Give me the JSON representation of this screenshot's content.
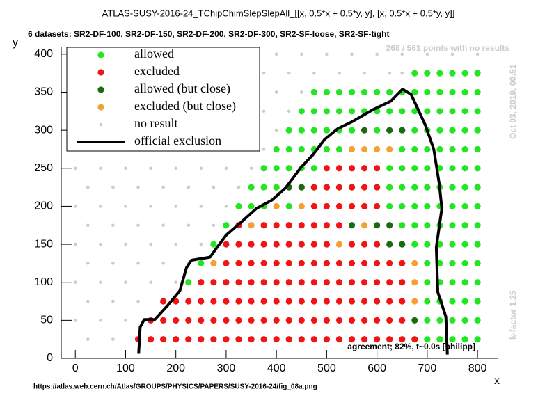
{
  "chart_data": {
    "type": "scatter",
    "title": "ATLAS-SUSY-2016-24_TChipChimSlepSlepAll_[[x, 0.5*x + 0.5*y, y], [x, 0.5*x + 0.5*y, y]]",
    "subtitle": "6 datasets: SR2-DF-100, SR2-DF-150, SR2-DF-200, SR2-DF-300, SR2-SF-loose, SR2-SF-tight",
    "x_label": "x",
    "y_label": "y",
    "annotation_no_results": "268 / 561 points with no results",
    "timestamp": "Oct 03, 2019, 00:51",
    "k_factor": "k-factor 1.25",
    "agreement": "agreement; 82%, t~0.0s [philipp]",
    "source_url": "https://atlas.web.cern.ch/Atlas/GROUPS/PHYSICS/PAPERS/SUSY-2016-24/fig_08a.png",
    "xlim": [
      -28,
      840
    ],
    "ylim": [
      0,
      409
    ],
    "xticks": [
      0,
      100,
      200,
      300,
      400,
      500,
      600,
      700,
      800
    ],
    "yticks": [
      0,
      50,
      100,
      150,
      200,
      250,
      300,
      350,
      400
    ],
    "legend_position": "top-left",
    "series": [
      {
        "name": "allowed",
        "color": "#22e622",
        "mode": "points",
        "x": [
          700,
          725,
          750,
          775,
          800,
          700,
          725,
          750,
          775,
          800,
          700,
          725,
          750,
          775,
          800,
          225,
          700,
          725,
          750,
          775,
          800,
          250,
          700,
          725,
          750,
          775,
          800,
          275,
          675,
          700,
          725,
          750,
          775,
          800,
          300,
          650,
          675,
          700,
          725,
          750,
          775,
          800,
          325,
          350,
          375,
          425,
          625,
          650,
          675,
          700,
          725,
          750,
          775,
          800,
          350,
          375,
          400,
          625,
          650,
          675,
          700,
          725,
          750,
          775,
          800,
          375,
          400,
          425,
          450,
          475,
          625,
          650,
          675,
          700,
          725,
          750,
          775,
          800,
          400,
          425,
          450,
          475,
          500,
          525,
          650,
          675,
          700,
          725,
          750,
          775,
          800,
          425,
          450,
          475,
          500,
          525,
          550,
          600,
          675,
          700,
          725,
          750,
          775,
          800,
          450,
          475,
          500,
          525,
          550,
          575,
          600,
          625,
          650,
          675,
          700,
          725,
          750,
          775,
          800,
          475,
          500,
          525,
          550,
          575,
          600,
          625,
          650,
          675,
          700,
          725,
          750,
          775,
          800,
          675,
          700,
          725,
          750,
          775,
          800
        ],
        "values": [
          25,
          25,
          25,
          25,
          25,
          50,
          50,
          50,
          50,
          50,
          75,
          75,
          75,
          75,
          75,
          100,
          100,
          100,
          100,
          100,
          100,
          125,
          125,
          125,
          125,
          125,
          125,
          150,
          150,
          150,
          150,
          150,
          150,
          150,
          175,
          175,
          175,
          175,
          175,
          175,
          175,
          175,
          200,
          200,
          200,
          200,
          200,
          200,
          200,
          200,
          200,
          200,
          200,
          200,
          225,
          225,
          225,
          225,
          225,
          225,
          225,
          225,
          225,
          225,
          225,
          250,
          250,
          250,
          250,
          250,
          250,
          250,
          250,
          250,
          250,
          250,
          250,
          250,
          275,
          275,
          275,
          275,
          275,
          275,
          275,
          275,
          275,
          275,
          275,
          275,
          275,
          300,
          300,
          300,
          300,
          300,
          300,
          300,
          300,
          300,
          300,
          300,
          300,
          300,
          325,
          325,
          325,
          325,
          325,
          325,
          325,
          325,
          325,
          325,
          325,
          325,
          325,
          325,
          325,
          350,
          350,
          350,
          350,
          350,
          350,
          350,
          350,
          350,
          350,
          350,
          350,
          350,
          350,
          375,
          375,
          375,
          375,
          375,
          375
        ]
      },
      {
        "name": "excluded",
        "color": "#f01414",
        "mode": "points",
        "x": [
          125,
          150,
          175,
          200,
          225,
          250,
          275,
          300,
          325,
          350,
          375,
          400,
          425,
          450,
          475,
          500,
          525,
          550,
          575,
          600,
          625,
          650,
          675,
          150,
          175,
          200,
          225,
          250,
          275,
          300,
          325,
          350,
          375,
          400,
          425,
          450,
          475,
          500,
          525,
          550,
          575,
          600,
          625,
          650,
          175,
          200,
          225,
          250,
          275,
          300,
          325,
          350,
          375,
          400,
          425,
          450,
          475,
          500,
          525,
          550,
          575,
          600,
          625,
          650,
          250,
          275,
          300,
          325,
          350,
          375,
          400,
          425,
          450,
          475,
          500,
          525,
          550,
          575,
          600,
          625,
          650,
          300,
          325,
          350,
          375,
          400,
          425,
          450,
          475,
          500,
          525,
          550,
          575,
          600,
          625,
          650,
          300,
          325,
          350,
          375,
          400,
          425,
          450,
          475,
          500,
          550,
          575,
          600,
          325,
          375,
          400,
          425,
          450,
          475,
          500,
          525,
          475,
          500,
          525,
          550,
          575,
          600,
          475,
          500,
          525,
          550,
          575,
          600,
          500,
          525,
          550,
          575,
          600
        ],
        "values": [
          25,
          25,
          25,
          25,
          25,
          25,
          25,
          25,
          25,
          25,
          25,
          25,
          25,
          25,
          25,
          25,
          25,
          25,
          25,
          25,
          25,
          25,
          25,
          50,
          50,
          50,
          50,
          50,
          50,
          50,
          50,
          50,
          50,
          50,
          50,
          50,
          50,
          50,
          50,
          50,
          50,
          50,
          50,
          50,
          75,
          75,
          75,
          75,
          75,
          75,
          75,
          75,
          75,
          75,
          75,
          75,
          75,
          75,
          75,
          75,
          75,
          75,
          75,
          75,
          100,
          100,
          100,
          100,
          100,
          100,
          100,
          100,
          100,
          100,
          100,
          100,
          100,
          100,
          100,
          100,
          100,
          125,
          125,
          125,
          125,
          125,
          125,
          125,
          125,
          125,
          125,
          125,
          125,
          125,
          125,
          125,
          150,
          150,
          150,
          150,
          150,
          150,
          150,
          150,
          150,
          150,
          150,
          150,
          175,
          175,
          175,
          175,
          175,
          175,
          175,
          175,
          200,
          200,
          200,
          200,
          200,
          200,
          225,
          225,
          225,
          225,
          225,
          225,
          250,
          250,
          250,
          250,
          250
        ]
      },
      {
        "name": "allowed (but close)",
        "color": "#1b6a12",
        "mode": "points",
        "x": [
          675,
          625,
          650,
          550,
          600,
          625,
          425,
          450,
          575,
          625,
          650
        ],
        "values": [
          50,
          150,
          150,
          175,
          175,
          175,
          225,
          225,
          300,
          300,
          300
        ]
      },
      {
        "name": "excluded (but close)",
        "color": "#f5a032",
        "mode": "points",
        "x": [
          675,
          675,
          275,
          675,
          525,
          350,
          575,
          400,
          450,
          550,
          575,
          600,
          625
        ],
        "values": [
          75,
          100,
          125,
          125,
          150,
          175,
          175,
          200,
          200,
          275,
          275,
          275,
          275
        ]
      },
      {
        "name": "no result",
        "color": "#cccccc",
        "mode": "points",
        "x": [
          25,
          75,
          0,
          50,
          100,
          25,
          75,
          125,
          0,
          50,
          100,
          150,
          200,
          25,
          75,
          125,
          175,
          225,
          0,
          50,
          100,
          150,
          200,
          250,
          25,
          75,
          125,
          175,
          225,
          275,
          0,
          50,
          100,
          150,
          200,
          250,
          300,
          25,
          75,
          125,
          175,
          225,
          275,
          325,
          0,
          50,
          100,
          150,
          200,
          250,
          300,
          350,
          25,
          75,
          125,
          175,
          225,
          275,
          325,
          375,
          0,
          50,
          100,
          150,
          200,
          250,
          300,
          350,
          400,
          25,
          75,
          125,
          175,
          225,
          275,
          325,
          375,
          425,
          0,
          50,
          100,
          150,
          200,
          250,
          300,
          350,
          400,
          450,
          25,
          75,
          125,
          175,
          225,
          275,
          325,
          375,
          425,
          475,
          525,
          575,
          625,
          650,
          0,
          50,
          100,
          150,
          200,
          250,
          300,
          350,
          400,
          450,
          500,
          550,
          600,
          650,
          700,
          750,
          800
        ],
        "values": [
          25,
          25,
          50,
          50,
          50,
          75,
          75,
          75,
          100,
          100,
          100,
          100,
          100,
          125,
          125,
          125,
          125,
          125,
          150,
          150,
          150,
          150,
          150,
          150,
          175,
          175,
          175,
          175,
          175,
          175,
          200,
          200,
          200,
          200,
          200,
          200,
          200,
          225,
          225,
          225,
          225,
          225,
          225,
          225,
          250,
          250,
          250,
          250,
          250,
          250,
          250,
          250,
          275,
          275,
          275,
          275,
          275,
          275,
          275,
          275,
          300,
          300,
          300,
          300,
          300,
          300,
          300,
          300,
          300,
          325,
          325,
          325,
          325,
          325,
          325,
          325,
          325,
          325,
          350,
          350,
          350,
          350,
          350,
          350,
          350,
          350,
          350,
          350,
          375,
          375,
          375,
          375,
          375,
          375,
          375,
          375,
          375,
          375,
          375,
          375,
          375,
          375,
          400,
          400,
          400,
          400,
          400,
          400,
          400,
          400,
          400,
          400,
          400,
          400,
          400,
          400,
          400,
          400,
          400
        ]
      },
      {
        "name": "official exclusion",
        "color": "#000000",
        "mode": "line",
        "x": [
          126,
          129,
          137,
          158,
          183,
          208,
          221,
          231,
          249,
          268,
          282,
          300,
          328,
          360,
          391,
          418,
          450,
          473,
          496,
          522,
          550,
          592,
          627,
          651,
          668,
          696,
          713,
          724,
          729,
          718,
          721,
          737,
          740
        ],
        "values": [
          6,
          41,
          51,
          51,
          69,
          89,
          119,
          129,
          131,
          133,
          146,
          162,
          178,
          197,
          208,
          224,
          252,
          268,
          288,
          302,
          311,
          327,
          338,
          354,
          347,
          307,
          275,
          229,
          197,
          146,
          87,
          55,
          5
        ]
      }
    ]
  }
}
